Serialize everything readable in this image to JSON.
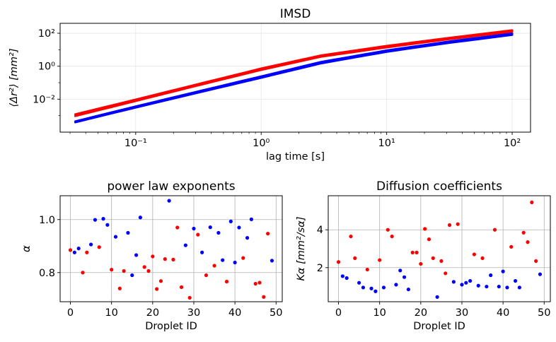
{
  "chart_data": [
    {
      "type": "line",
      "title": "IMSD",
      "xlabel": "lag time [s]",
      "ylabel": "⟨Δr²⟩ [mm²]",
      "x_scale": "log",
      "y_scale": "log",
      "xlim": [
        0.025,
        140
      ],
      "ylim": [
        0.0001,
        400
      ],
      "x_ticks": [
        0.1,
        1,
        10,
        100
      ],
      "x_tick_labels": [
        "10⁻¹",
        "10⁰",
        "10¹",
        "10²"
      ],
      "y_ticks": [
        0.01,
        1,
        100
      ],
      "y_tick_labels": [
        "10⁻²",
        "10⁰",
        "10²"
      ],
      "grid": true,
      "series": [
        {
          "color": "#ff0000",
          "x": [
            0.033,
            0.1,
            0.3,
            1,
            3,
            10,
            30,
            100
          ],
          "y": [
            0.0012,
            0.0095,
            0.075,
            0.72,
            4.5,
            17,
            50,
            150
          ]
        },
        {
          "color": "#ff0000",
          "x": [
            0.033,
            0.1,
            0.3,
            1,
            3,
            10,
            30,
            100
          ],
          "y": [
            0.00095,
            0.0078,
            0.063,
            0.6,
            3.8,
            14,
            42,
            125
          ]
        },
        {
          "color": "#0000ff",
          "x": [
            0.033,
            0.1,
            0.3,
            1,
            3,
            10,
            30,
            100
          ],
          "y": [
            0.00045,
            0.0036,
            0.027,
            0.24,
            1.8,
            9,
            30,
            95
          ]
        },
        {
          "color": "#0000ff",
          "x": [
            0.033,
            0.1,
            0.3,
            1,
            3,
            10,
            30,
            100
          ],
          "y": [
            0.0004,
            0.0031,
            0.023,
            0.2,
            1.5,
            7.5,
            25,
            80
          ]
        }
      ]
    },
    {
      "type": "scatter",
      "title": "power law exponents",
      "xlabel": "Droplet ID",
      "ylabel": "α",
      "xlim": [
        -2.5,
        51.5
      ],
      "ylim": [
        0.69,
        1.09
      ],
      "x_ticks": [
        0,
        10,
        20,
        30,
        40,
        50
      ],
      "y_ticks": [
        0.8,
        1.0
      ],
      "y_tick_labels": [
        "0.8",
        "1.0"
      ],
      "grid": true,
      "points": [
        [
          0,
          0.885,
          "#ff0000"
        ],
        [
          1,
          0.876,
          "#0000ff"
        ],
        [
          2,
          0.891,
          "#0000ff"
        ],
        [
          3,
          0.8,
          "#ff0000"
        ],
        [
          4,
          0.876,
          "#ff0000"
        ],
        [
          5,
          0.906,
          "#0000ff"
        ],
        [
          6,
          0.999,
          "#0000ff"
        ],
        [
          7,
          0.896,
          "#ff0000"
        ],
        [
          8,
          1.003,
          "#0000ff"
        ],
        [
          9,
          0.98,
          "#0000ff"
        ],
        [
          10,
          0.811,
          "#ff0000"
        ],
        [
          11,
          0.935,
          "#0000ff"
        ],
        [
          12,
          0.74,
          "#ff0000"
        ],
        [
          13,
          0.806,
          "#ff0000"
        ],
        [
          14,
          0.95,
          "#0000ff"
        ],
        [
          15,
          0.79,
          "#0000ff"
        ],
        [
          16,
          0.866,
          "#0000ff"
        ],
        [
          17,
          1.008,
          "#0000ff"
        ],
        [
          18,
          0.821,
          "#ff0000"
        ],
        [
          19,
          0.806,
          "#ff0000"
        ],
        [
          20,
          0.861,
          "#ff0000"
        ],
        [
          21,
          0.738,
          "#ff0000"
        ],
        [
          22,
          0.768,
          "#ff0000"
        ],
        [
          23,
          0.851,
          "#ff0000"
        ],
        [
          24,
          1.071,
          "#0000ff"
        ],
        [
          25,
          0.849,
          "#ff0000"
        ],
        [
          26,
          0.97,
          "#ff0000"
        ],
        [
          27,
          0.745,
          "#ff0000"
        ],
        [
          28,
          0.903,
          "#0000ff"
        ],
        [
          29,
          0.705,
          "#ff0000"
        ],
        [
          30,
          0.966,
          "#0000ff"
        ],
        [
          31,
          0.943,
          "#ff0000"
        ],
        [
          32,
          0.876,
          "#0000ff"
        ],
        [
          33,
          0.79,
          "#ff0000"
        ],
        [
          34,
          0.971,
          "#0000ff"
        ],
        [
          35,
          0.826,
          "#ff0000"
        ],
        [
          36,
          0.95,
          "#0000ff"
        ],
        [
          37,
          0.847,
          "#0000ff"
        ],
        [
          38,
          0.766,
          "#ff0000"
        ],
        [
          39,
          0.993,
          "#0000ff"
        ],
        [
          40,
          0.838,
          "#0000ff"
        ],
        [
          41,
          0.97,
          "#0000ff"
        ],
        [
          42,
          0.855,
          "#ff0000"
        ],
        [
          43,
          0.931,
          "#0000ff"
        ],
        [
          44,
          1.001,
          "#0000ff"
        ],
        [
          45,
          0.758,
          "#ff0000"
        ],
        [
          46,
          0.762,
          "#ff0000"
        ],
        [
          47,
          0.708,
          "#ff0000"
        ],
        [
          48,
          0.947,
          "#ff0000"
        ],
        [
          49,
          0.845,
          "#0000ff"
        ]
      ]
    },
    {
      "type": "scatter",
      "title": "Diffusion coefficients",
      "xlabel": "Droplet ID",
      "ylabel": "Kα [mm²/sα]",
      "xlim": [
        -2.5,
        51.5
      ],
      "ylim": [
        0.2,
        5.8
      ],
      "x_ticks": [
        0,
        10,
        20,
        30,
        40,
        50
      ],
      "y_ticks": [
        2,
        4
      ],
      "y_tick_labels": [
        "2",
        "4"
      ],
      "grid": true,
      "points": [
        [
          0,
          2.3,
          "#ff0000"
        ],
        [
          1,
          1.55,
          "#0000ff"
        ],
        [
          2,
          1.45,
          "#0000ff"
        ],
        [
          3,
          3.65,
          "#ff0000"
        ],
        [
          4,
          2.5,
          "#ff0000"
        ],
        [
          5,
          1.2,
          "#0000ff"
        ],
        [
          6,
          0.95,
          "#0000ff"
        ],
        [
          7,
          1.9,
          "#ff0000"
        ],
        [
          8,
          0.9,
          "#0000ff"
        ],
        [
          9,
          0.75,
          "#0000ff"
        ],
        [
          10,
          2.4,
          "#ff0000"
        ],
        [
          11,
          0.95,
          "#0000ff"
        ],
        [
          12,
          4.0,
          "#ff0000"
        ],
        [
          13,
          3.65,
          "#ff0000"
        ],
        [
          14,
          1.1,
          "#0000ff"
        ],
        [
          15,
          1.85,
          "#0000ff"
        ],
        [
          16,
          1.5,
          "#0000ff"
        ],
        [
          17,
          0.85,
          "#0000ff"
        ],
        [
          18,
          2.8,
          "#ff0000"
        ],
        [
          19,
          2.8,
          "#ff0000"
        ],
        [
          20,
          2.2,
          "#ff0000"
        ],
        [
          21,
          4.05,
          "#ff0000"
        ],
        [
          22,
          3.5,
          "#ff0000"
        ],
        [
          23,
          2.5,
          "#ff0000"
        ],
        [
          24,
          0.45,
          "#0000ff"
        ],
        [
          25,
          2.35,
          "#ff0000"
        ],
        [
          26,
          1.7,
          "#ff0000"
        ],
        [
          27,
          4.25,
          "#ff0000"
        ],
        [
          28,
          1.25,
          "#0000ff"
        ],
        [
          29,
          4.3,
          "#ff0000"
        ],
        [
          30,
          1.1,
          "#0000ff"
        ],
        [
          31,
          1.2,
          "#0000ff"
        ],
        [
          32,
          1.3,
          "#0000ff"
        ],
        [
          33,
          2.7,
          "#ff0000"
        ],
        [
          34,
          1.05,
          "#0000ff"
        ],
        [
          35,
          2.5,
          "#ff0000"
        ],
        [
          36,
          1.0,
          "#0000ff"
        ],
        [
          37,
          1.6,
          "#0000ff"
        ],
        [
          38,
          4.0,
          "#ff0000"
        ],
        [
          39,
          1.0,
          "#0000ff"
        ],
        [
          40,
          1.8,
          "#0000ff"
        ],
        [
          41,
          0.95,
          "#0000ff"
        ],
        [
          42,
          3.1,
          "#ff0000"
        ],
        [
          43,
          1.3,
          "#0000ff"
        ],
        [
          44,
          0.95,
          "#0000ff"
        ],
        [
          45,
          3.85,
          "#ff0000"
        ],
        [
          46,
          3.35,
          "#ff0000"
        ],
        [
          47,
          5.45,
          "#ff0000"
        ],
        [
          48,
          2.35,
          "#ff0000"
        ],
        [
          49,
          1.65,
          "#0000ff"
        ]
      ]
    }
  ]
}
